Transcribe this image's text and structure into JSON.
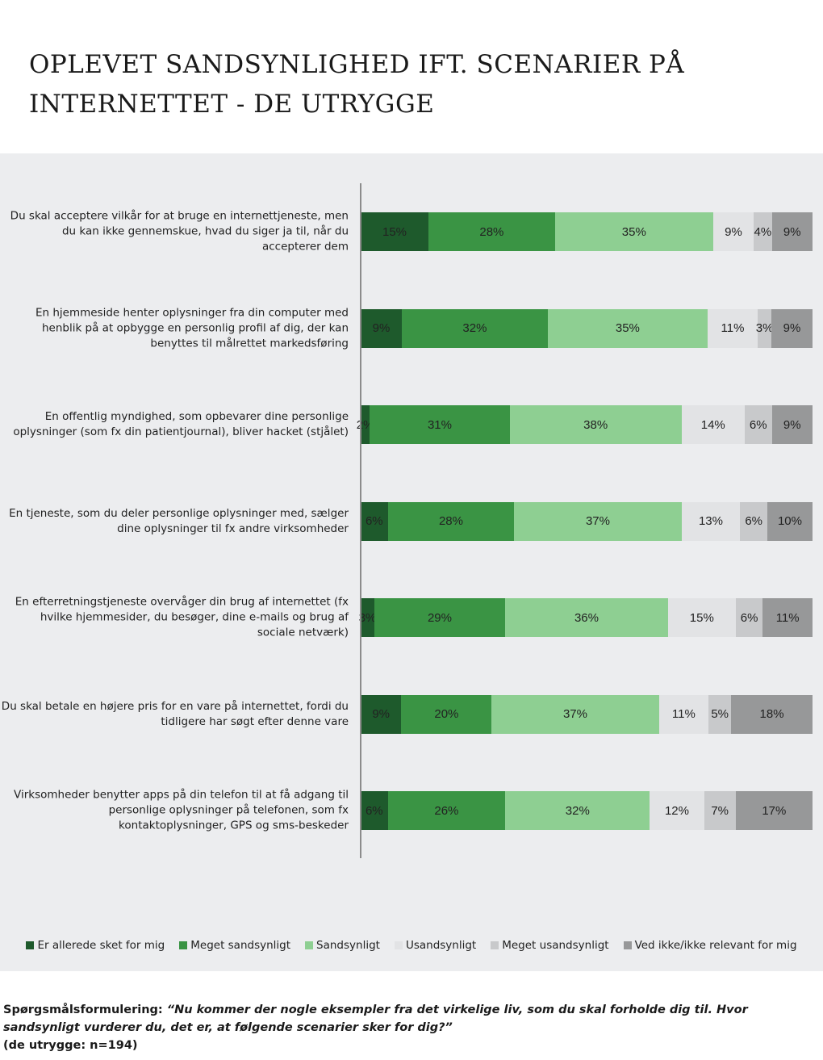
{
  "title_line1": "OPLEVET SANDSYNLIGHED IFT. SCENARIER PÅ",
  "title_line2": "INTERNETTET - DE UTRYGGE",
  "footer": {
    "label": "Spørgsmålsformulering:",
    "question": "“Nu kommer der nogle eksempler fra det virkelige liv, som du skal forholde dig til. Hvor sandsynligt vurderer du, det er, at følgende scenarier sker for dig?”",
    "base": "(de utrygge: n=194)"
  },
  "chart_data": {
    "type": "bar",
    "orientation": "horizontal",
    "stacked": true,
    "legend_position": "bottom",
    "categories": [
      "Du skal acceptere vilkår for at bruge en internettjeneste, men du kan ikke gennemskue, hvad du siger ja til, når du accepterer dem",
      "En hjemmeside henter oplysninger fra din computer med henblik på at opbygge en personlig profil af dig, der kan benyttes til målrettet markedsføring",
      "En offentlig myndighed, som opbevarer dine personlige oplysninger (som fx din patientjournal), bliver hacket (stjålet)",
      "En tjeneste, som du deler personlige oplysninger med, sælger dine oplysninger til fx andre virksomheder",
      "En efterretningstjeneste overvåger din brug af internettet (fx hvilke hjemmesider, du besøger, dine e-mails og brug af sociale netværk)",
      "Du skal betale en højere pris for en vare på internettet, fordi du tidligere har søgt efter denne vare",
      "Virksomheder benytter apps på din telefon til at få adgang til personlige oplysninger på telefonen, som fx kontaktoplysninger, GPS og sms-beskeder"
    ],
    "series": [
      {
        "name": "Er allerede sket for mig",
        "color": "#1e5a2c",
        "values": [
          15,
          9,
          2,
          6,
          3,
          9,
          6
        ]
      },
      {
        "name": "Meget sandsynligt",
        "color": "#3a9444",
        "values": [
          28,
          32,
          31,
          28,
          29,
          20,
          26
        ]
      },
      {
        "name": "Sandsynligt",
        "color": "#8ecf92",
        "values": [
          35,
          35,
          38,
          37,
          36,
          37,
          32
        ]
      },
      {
        "name": "Usandsynligt",
        "color": "#e2e3e5",
        "values": [
          9,
          11,
          14,
          13,
          15,
          11,
          12
        ]
      },
      {
        "name": "Meget usandsynligt",
        "color": "#c8c9cb",
        "values": [
          4,
          3,
          6,
          6,
          6,
          5,
          7
        ]
      },
      {
        "name": "Ved ikke/ikke relevant for mig",
        "color": "#979899",
        "values": [
          9,
          9,
          9,
          10,
          11,
          18,
          17
        ]
      }
    ],
    "value_suffix": "%"
  }
}
